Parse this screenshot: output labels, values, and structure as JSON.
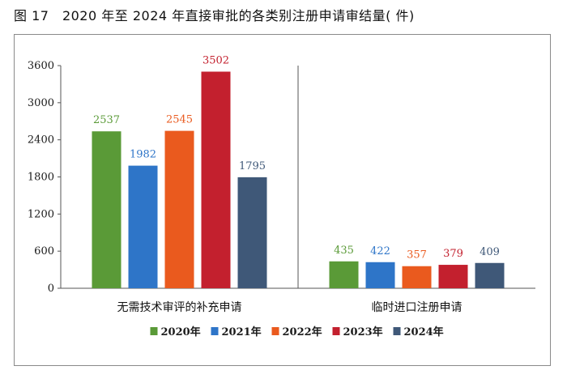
{
  "figure": {
    "title": "图 17　2020 年至 2024 年直接审批的各类别注册申请审结量( 件)"
  },
  "chart_data": {
    "type": "bar",
    "title": "图 17　2020 年至 2024 年直接审批的各类别注册申请审结量( 件)",
    "xlabel": "",
    "ylabel": "",
    "categories": [
      "无需技术审评的补充申请",
      "临时进口注册申请"
    ],
    "ylim": [
      0,
      3600
    ],
    "yticks": [
      0,
      600,
      1200,
      1800,
      2400,
      3000,
      3600
    ],
    "grid": false,
    "legend_position": "bottom",
    "series": [
      {
        "name": "2020年",
        "color": "#5a9a37",
        "values": [
          2537,
          435
        ]
      },
      {
        "name": "2021年",
        "color": "#2e75c8",
        "values": [
          1982,
          422
        ]
      },
      {
        "name": "2022年",
        "color": "#ea5a1e",
        "values": [
          2545,
          357
        ]
      },
      {
        "name": "2023年",
        "color": "#c3202e",
        "values": [
          3502,
          379
        ]
      },
      {
        "name": "2024年",
        "color": "#3f5878",
        "values": [
          1795,
          409
        ]
      }
    ]
  }
}
